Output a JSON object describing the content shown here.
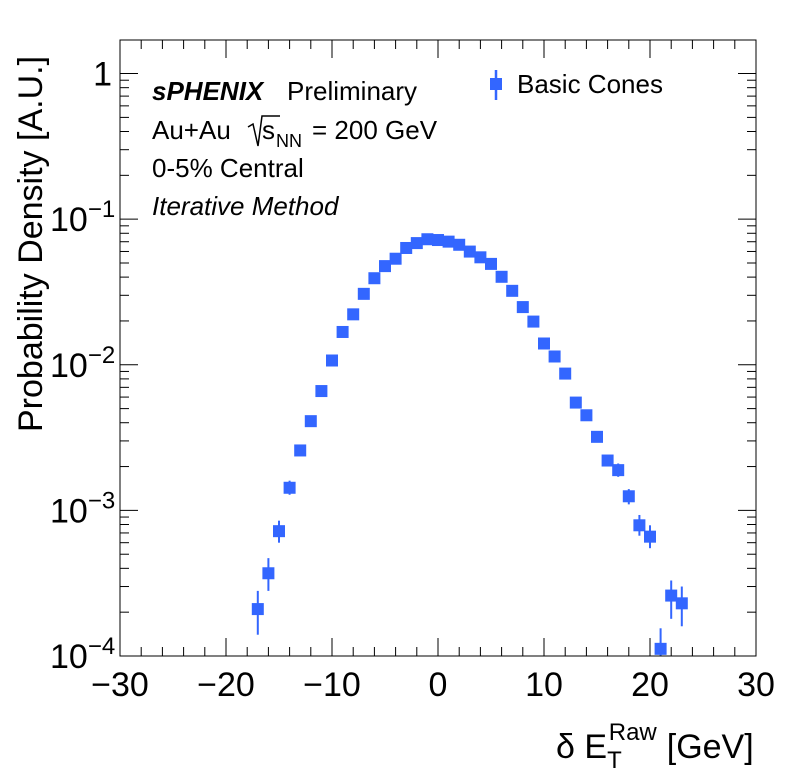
{
  "chart_data": {
    "type": "scatter",
    "xlabel": {
      "prefix": "δ E",
      "sub": "T",
      "sup": "Raw",
      "unit": "[GeV]"
    },
    "ylabel": "Probability Density [A.U.]",
    "xlim": [
      -30,
      30
    ],
    "ylim": [
      0.0001,
      1.7
    ],
    "yscale": "log",
    "x_ticks": [
      -30,
      -20,
      -10,
      0,
      10,
      20,
      30
    ],
    "x_tick_labels": [
      "−30",
      "−20",
      "−10",
      "0",
      "10",
      "20",
      "30"
    ],
    "y_ticks": [
      {
        "value": 1,
        "base": "1",
        "exp": ""
      },
      {
        "value": 0.1,
        "base": "10",
        "exp": "−1"
      },
      {
        "value": 0.01,
        "base": "10",
        "exp": "−2"
      },
      {
        "value": 0.001,
        "base": "10",
        "exp": "−3"
      },
      {
        "value": 0.0001,
        "base": "10",
        "exp": "−4"
      }
    ],
    "annotations": {
      "experiment": "sPHENIX",
      "status": "Preliminary",
      "system": "Au+Au",
      "energy_sqrt": "s",
      "energy_sub": "NN",
      "energy_value": "= 200 GeV",
      "centrality": "0-5% Central",
      "method": "Iterative Method"
    },
    "legend": {
      "position": "top-right",
      "entries": [
        "Basic Cones"
      ]
    },
    "series": [
      {
        "name": "Basic Cones",
        "color": "#3366ff",
        "points": [
          {
            "x": -17,
            "y": 0.00021,
            "lo": 0.00014,
            "hi": 0.00028
          },
          {
            "x": -16,
            "y": 0.00037,
            "lo": 0.00028,
            "hi": 0.00047
          },
          {
            "x": -15,
            "y": 0.00072,
            "lo": 0.0006,
            "hi": 0.00085
          },
          {
            "x": -14,
            "y": 0.00143,
            "lo": 0.00128,
            "hi": 0.0016
          },
          {
            "x": -13,
            "y": 0.00258,
            "lo": 0.00237,
            "hi": 0.0028
          },
          {
            "x": -12,
            "y": 0.0041,
            "lo": 0.0039,
            "hi": 0.0043
          },
          {
            "x": -11,
            "y": 0.0066
          },
          {
            "x": -10,
            "y": 0.0107
          },
          {
            "x": -9,
            "y": 0.0168
          },
          {
            "x": -8,
            "y": 0.0222
          },
          {
            "x": -7,
            "y": 0.0307
          },
          {
            "x": -6,
            "y": 0.0393
          },
          {
            "x": -5,
            "y": 0.0476
          },
          {
            "x": -4,
            "y": 0.0535
          },
          {
            "x": -3,
            "y": 0.0634
          },
          {
            "x": -2,
            "y": 0.0685
          },
          {
            "x": -1,
            "y": 0.0728
          },
          {
            "x": 0,
            "y": 0.0719
          },
          {
            "x": 1,
            "y": 0.0701
          },
          {
            "x": 2,
            "y": 0.0667
          },
          {
            "x": 3,
            "y": 0.0599
          },
          {
            "x": 4,
            "y": 0.0547
          },
          {
            "x": 5,
            "y": 0.0493
          },
          {
            "x": 6,
            "y": 0.0402
          },
          {
            "x": 7,
            "y": 0.0322
          },
          {
            "x": 8,
            "y": 0.0249
          },
          {
            "x": 9,
            "y": 0.0198
          },
          {
            "x": 10,
            "y": 0.014
          },
          {
            "x": 11,
            "y": 0.0114
          },
          {
            "x": 12,
            "y": 0.0087
          },
          {
            "x": 13,
            "y": 0.0055
          },
          {
            "x": 14,
            "y": 0.0045
          },
          {
            "x": 15,
            "y": 0.0032
          },
          {
            "x": 16,
            "y": 0.0022,
            "lo": 0.00205,
            "hi": 0.00235
          },
          {
            "x": 17,
            "y": 0.00189,
            "lo": 0.0017,
            "hi": 0.0021
          },
          {
            "x": 18,
            "y": 0.00125,
            "lo": 0.0011,
            "hi": 0.0014
          },
          {
            "x": 19,
            "y": 0.00079,
            "lo": 0.00067,
            "hi": 0.00093
          },
          {
            "x": 20,
            "y": 0.00066,
            "lo": 0.00055,
            "hi": 0.00079
          },
          {
            "x": 21,
            "y": 0.000112,
            "lo": 8e-05,
            "hi": 0.000155
          },
          {
            "x": 22,
            "y": 0.00026,
            "lo": 0.00018,
            "hi": 0.00033
          },
          {
            "x": 23,
            "y": 0.00023,
            "lo": 0.00016,
            "hi": 0.0003
          }
        ]
      }
    ]
  }
}
